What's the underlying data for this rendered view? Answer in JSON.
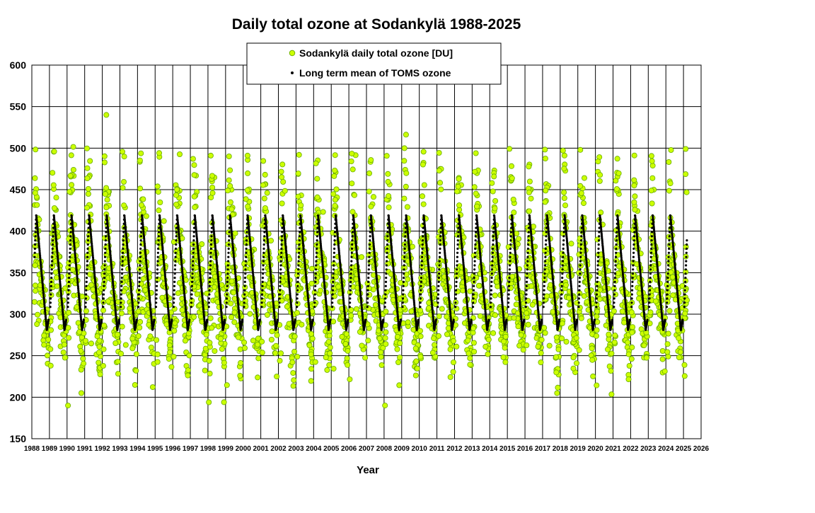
{
  "chart_data": {
    "type": "scatter",
    "title": "Daily total ozone at Sodankylä 1988-2025",
    "xlabel": "Year",
    "ylabel": "",
    "xlim": [
      1988,
      2026
    ],
    "ylim": [
      150,
      600
    ],
    "x_ticks": [
      "1988",
      "1989",
      "1990",
      "1991",
      "1992",
      "1993",
      "1994",
      "1995",
      "1996",
      "1997",
      "1998",
      "1999",
      "2000",
      "2001",
      "2002",
      "2003",
      "2004",
      "2005",
      "2006",
      "2007",
      "2008",
      "2009",
      "2010",
      "2011",
      "2012",
      "2013",
      "2014",
      "2015",
      "2016",
      "2017",
      "2018",
      "2019",
      "2020",
      "2021",
      "2022",
      "2023",
      "2024",
      "2025",
      "2026"
    ],
    "y_ticks": [
      "150",
      "200",
      "250",
      "300",
      "350",
      "400",
      "450",
      "500",
      "550",
      "600"
    ],
    "grid": true,
    "legend_position": "top-center",
    "series": [
      {
        "name": "Sodankylä daily total ozone [DU]",
        "marker": "circle",
        "color": "#ccff00",
        "edge_color": "#66aa00",
        "x_range": [
          1988.15,
          2025.2
        ],
        "seasonal_typical": {
          "spring_max_approx": 460,
          "autumn_min_approx": 270
        },
        "observed_extremes": {
          "max": 547,
          "min": 188
        }
      },
      {
        "name": "Long term mean of TOMS ozone",
        "marker": "dot",
        "color": "#000000",
        "x_range": [
          1988.15,
          2025.2
        ],
        "seasonal_max": 420,
        "seasonal_min": 281
      }
    ]
  }
}
